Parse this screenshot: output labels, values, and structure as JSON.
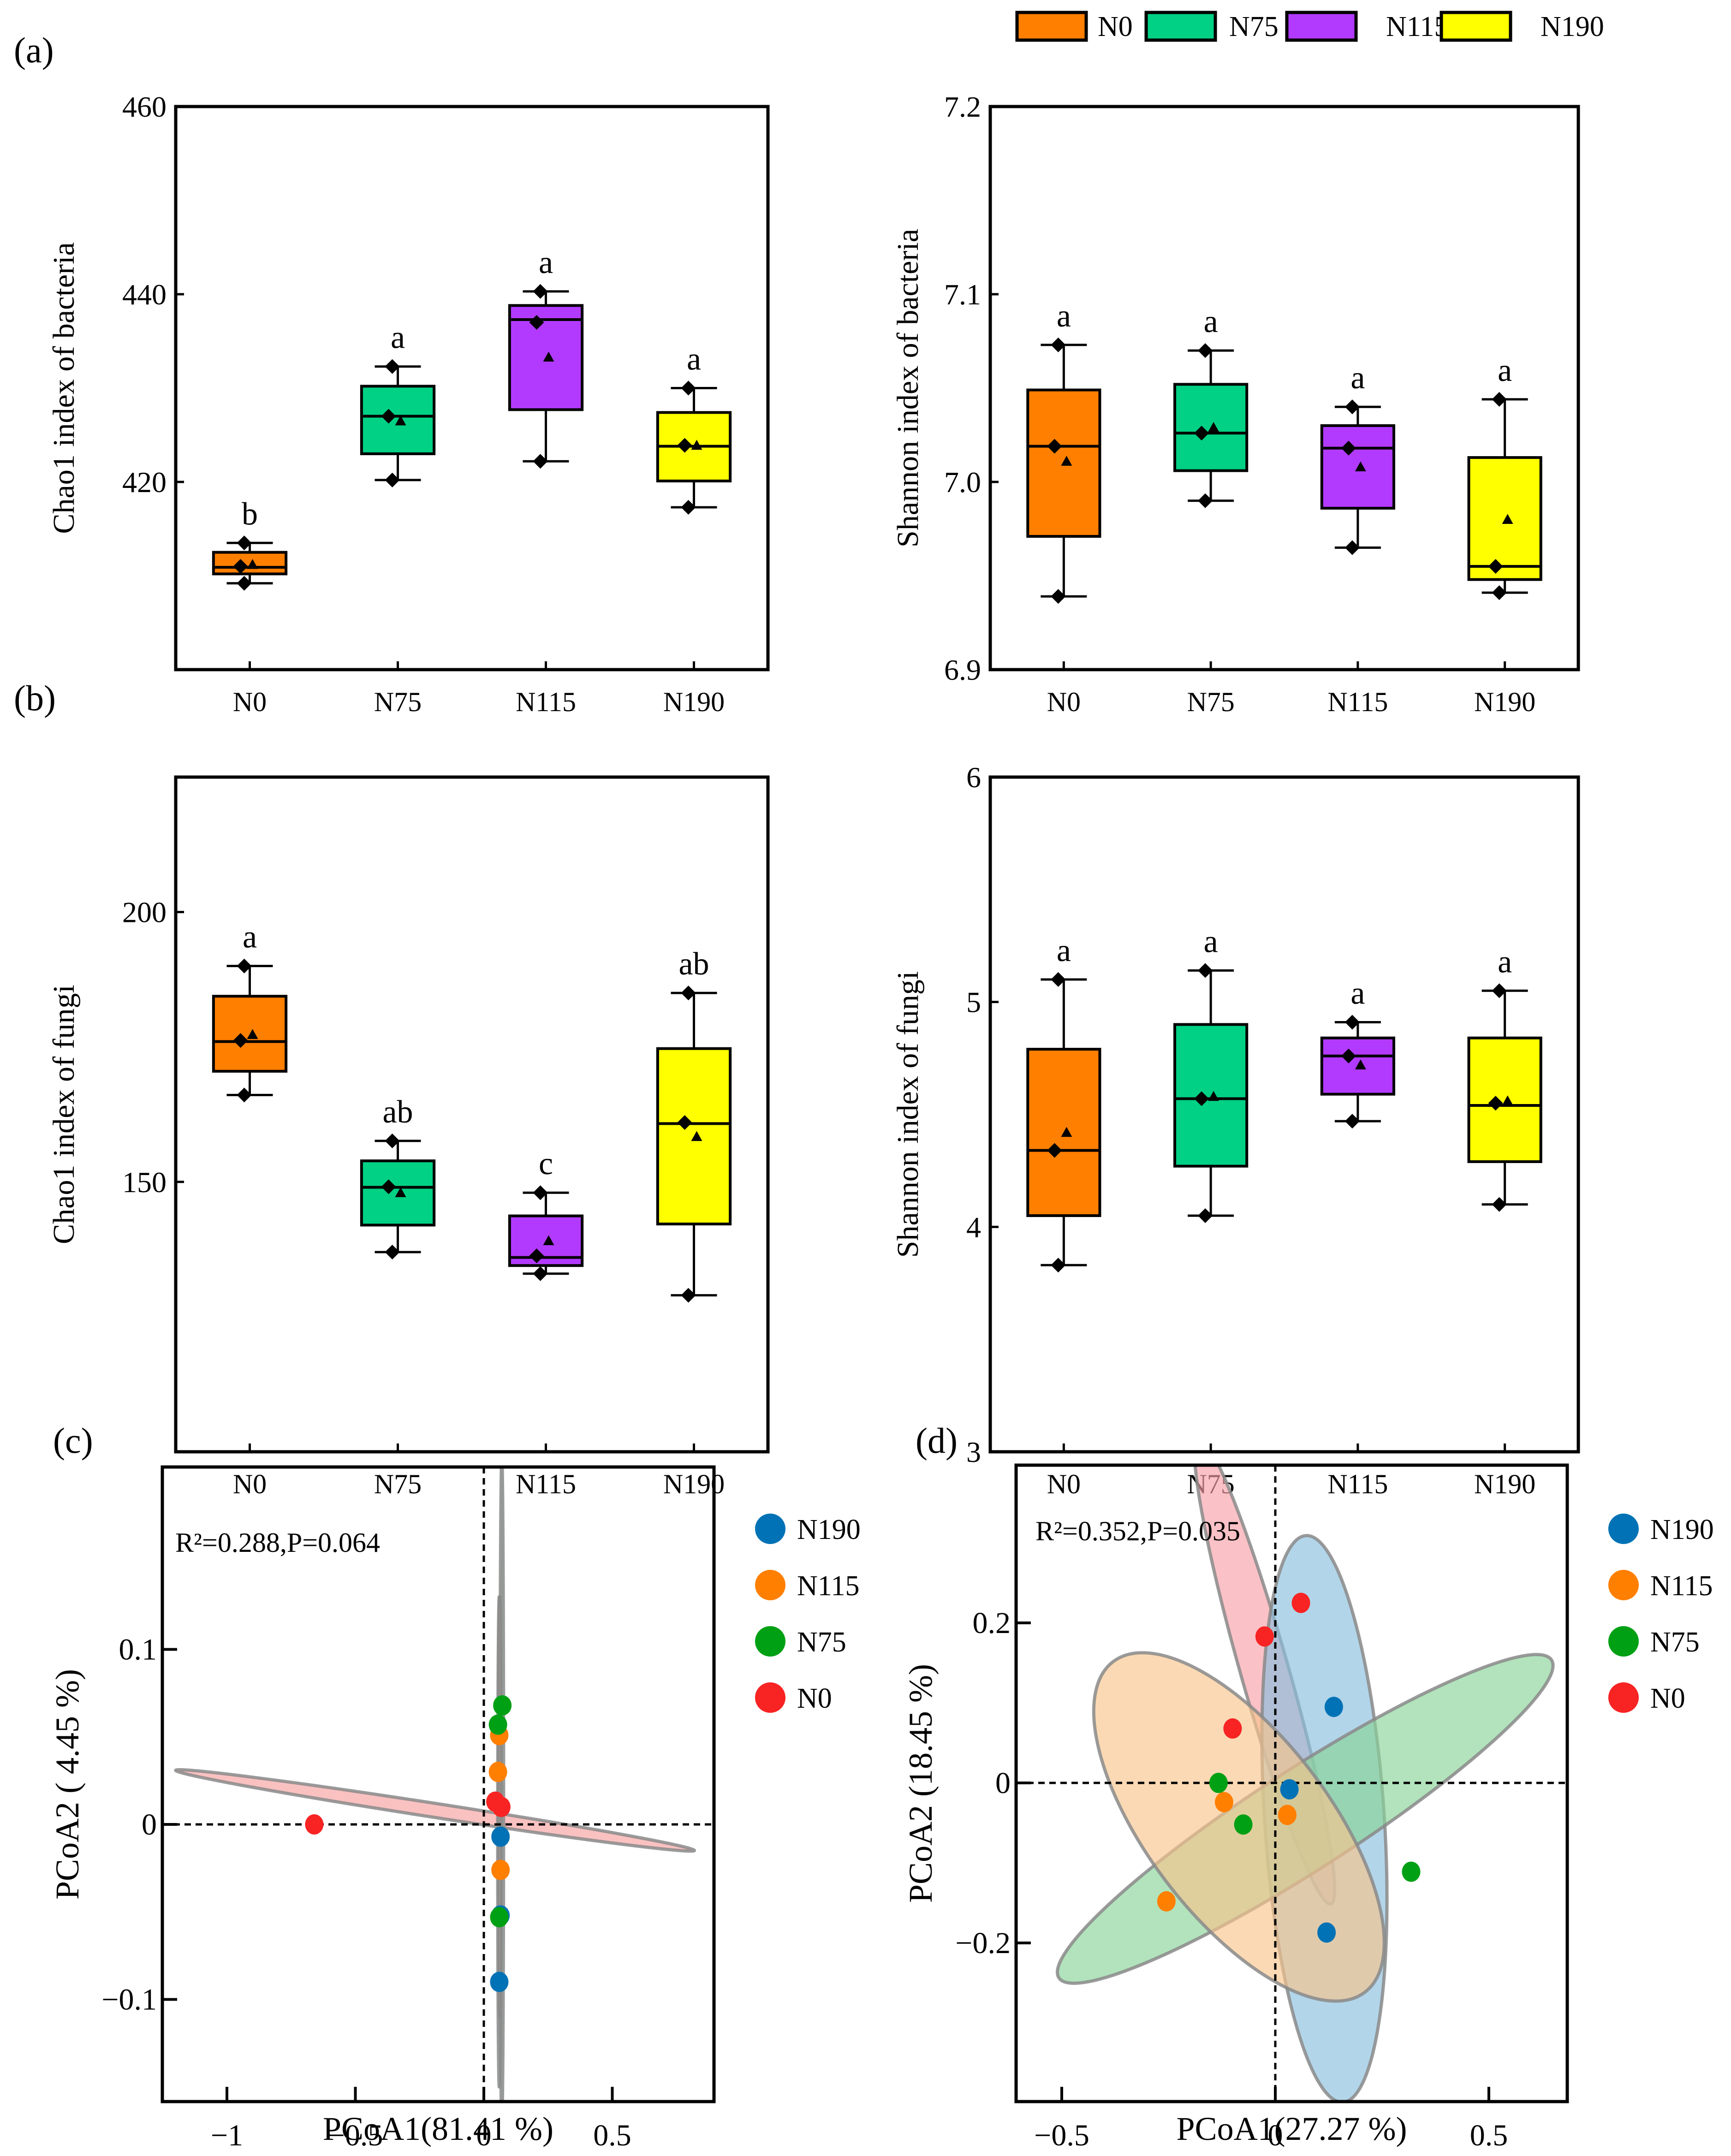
{
  "figure": {
    "panel_labels": [
      "(a)",
      "(b)",
      "(c)",
      "(d)"
    ]
  },
  "legend_box": {
    "items": [
      {
        "label": "N0",
        "color": "#FF7F00"
      },
      {
        "label": "N75",
        "color": "#00D184"
      },
      {
        "label": "N115",
        "color": "#B23AFF"
      },
      {
        "label": "N190",
        "color": "#FFFF00"
      }
    ]
  },
  "chart_data": [
    {
      "id": "chao1-bacteria",
      "type": "box",
      "panel": "(a)",
      "ylabel": "Chao1 index of bacteria",
      "xlabel": "",
      "categories": [
        "N0",
        "N75",
        "N115",
        "N190"
      ],
      "ylim": [
        400,
        460
      ],
      "yticks": [
        420,
        440,
        460
      ],
      "grid": false,
      "boxes": [
        {
          "q1": 410.2,
          "median": 410.9,
          "q3": 412.5,
          "min": 409.2,
          "max": 413.5,
          "mean": 411.2,
          "points": [
            409.2,
            411.0,
            413.5
          ],
          "letter": "b"
        },
        {
          "q1": 423.0,
          "median": 427.0,
          "q3": 430.2,
          "min": 420.2,
          "max": 432.3,
          "mean": 426.5,
          "points": [
            420.2,
            427.0,
            432.3
          ],
          "letter": "a"
        },
        {
          "q1": 427.7,
          "median": 437.3,
          "q3": 438.8,
          "min": 422.2,
          "max": 440.3,
          "mean": 433.3,
          "points": [
            422.2,
            437.0,
            440.3
          ],
          "letter": "a"
        },
        {
          "q1": 420.1,
          "median": 423.8,
          "q3": 427.4,
          "min": 417.3,
          "max": 430.0,
          "mean": 423.9,
          "points": [
            417.3,
            423.9,
            430.0
          ],
          "letter": "a"
        }
      ]
    },
    {
      "id": "shannon-bacteria",
      "type": "box",
      "panel": "(a)",
      "ylabel": "Shannon index of bacteria",
      "xlabel": "",
      "categories": [
        "N0",
        "N75",
        "N115",
        "N190"
      ],
      "ylim": [
        6.9,
        7.2
      ],
      "yticks": [
        6.9,
        7.0,
        7.1,
        7.2
      ],
      "grid": false,
      "boxes": [
        {
          "q1": 6.971,
          "median": 7.019,
          "q3": 7.049,
          "min": 6.939,
          "max": 7.073,
          "mean": 7.011,
          "points": [
            6.939,
            7.019,
            7.073
          ],
          "letter": "a"
        },
        {
          "q1": 7.006,
          "median": 7.026,
          "q3": 7.052,
          "min": 6.99,
          "max": 7.07,
          "mean": 7.029,
          "points": [
            6.99,
            7.026,
            7.07
          ],
          "letter": "a"
        },
        {
          "q1": 6.986,
          "median": 7.018,
          "q3": 7.03,
          "min": 6.965,
          "max": 7.04,
          "mean": 7.008,
          "points": [
            6.965,
            7.018,
            7.04
          ],
          "letter": "a"
        },
        {
          "q1": 6.948,
          "median": 6.955,
          "q3": 7.013,
          "min": 6.941,
          "max": 7.044,
          "mean": 6.98,
          "points": [
            6.941,
            6.955,
            7.044
          ],
          "letter": "a"
        }
      ]
    },
    {
      "id": "chao1-fungi",
      "type": "box",
      "panel": "(b)",
      "ylabel": "Chao1 index of fungi",
      "xlabel": "",
      "categories": [
        "N0",
        "N75",
        "N115",
        "N190"
      ],
      "ylim": [
        100,
        225
      ],
      "yticks": [
        150,
        200
      ],
      "grid": false,
      "boxes": [
        {
          "q1": 170.5,
          "median": 176.0,
          "q3": 184.4,
          "min": 166.1,
          "max": 190.0,
          "mean": 177.3,
          "points": [
            166.1,
            176.2,
            190.0
          ],
          "letter": "a"
        },
        {
          "q1": 142.0,
          "median": 149.0,
          "q3": 153.9,
          "min": 137.0,
          "max": 157.6,
          "mean": 148.0,
          "points": [
            137.0,
            149.1,
            157.6
          ],
          "letter": "ab"
        },
        {
          "q1": 134.5,
          "median": 136.0,
          "q3": 143.7,
          "min": 133.0,
          "max": 148.0,
          "mean": 139.1,
          "points": [
            133.0,
            136.3,
            148.0
          ],
          "letter": "c"
        },
        {
          "q1": 142.2,
          "median": 160.8,
          "q3": 174.7,
          "min": 129.0,
          "max": 185.0,
          "mean": 158.4,
          "points": [
            129.0,
            161.0,
            185.0
          ],
          "letter": "ab"
        }
      ]
    },
    {
      "id": "shannon-fungi",
      "type": "box",
      "panel": "(b)",
      "ylabel": "Shannon  index of fungi",
      "xlabel": "",
      "categories": [
        "N0",
        "N75",
        "N115",
        "N190"
      ],
      "ylim": [
        3,
        6
      ],
      "yticks": [
        3,
        4,
        5,
        6
      ],
      "grid": false,
      "boxes": [
        {
          "q1": 4.05,
          "median": 4.34,
          "q3": 4.79,
          "min": 3.83,
          "max": 5.1,
          "mean": 4.42,
          "points": [
            3.83,
            4.34,
            5.1
          ],
          "letter": "a"
        },
        {
          "q1": 4.27,
          "median": 4.57,
          "q3": 4.9,
          "min": 4.05,
          "max": 5.14,
          "mean": 4.58,
          "points": [
            4.05,
            4.57,
            5.14
          ],
          "letter": "a"
        },
        {
          "q1": 4.59,
          "median": 4.76,
          "q3": 4.84,
          "min": 4.47,
          "max": 4.91,
          "mean": 4.72,
          "points": [
            4.47,
            4.76,
            4.91
          ],
          "letter": "a"
        },
        {
          "q1": 4.29,
          "median": 4.54,
          "q3": 4.84,
          "min": 4.1,
          "max": 5.05,
          "mean": 4.56,
          "points": [
            4.1,
            4.55,
            5.05
          ],
          "letter": "a"
        }
      ]
    },
    {
      "id": "pcoa-bacteria",
      "type": "scatter",
      "panel": "(c)",
      "xlabel": "PCoA1(81.41 %)",
      "ylabel": "PCoA2 ( 4.45 %)",
      "annotation": "R²=0.288,P=0.064",
      "xlim": [
        -1.25,
        0.9
      ],
      "ylim": [
        -0.158,
        0.204
      ],
      "xticks": [
        -1,
        -0.5,
        0,
        0.5
      ],
      "xtick_labels": [
        "−1",
        "−0.5",
        "0",
        "0.5"
      ],
      "yticks": [
        -0.1,
        0,
        0.1
      ],
      "ytick_labels": [
        "−0.1",
        "0",
        "0.1"
      ],
      "legend_position": "right",
      "series": [
        {
          "name": "N190",
          "color": "#0072B5",
          "points": [
            [
              0.065,
              -0.007
            ],
            [
              0.065,
              -0.052
            ],
            [
              0.06,
              -0.09
            ]
          ]
        },
        {
          "name": "N115",
          "color": "#FF7F00",
          "points": [
            [
              0.06,
              0.051
            ],
            [
              0.055,
              0.03
            ],
            [
              0.065,
              -0.026
            ]
          ]
        },
        {
          "name": "N75",
          "color": "#00A014",
          "points": [
            [
              0.072,
              0.068
            ],
            [
              0.055,
              0.057
            ],
            [
              0.06,
              -0.053
            ]
          ]
        },
        {
          "name": "N0",
          "color": "#F82323",
          "points": [
            [
              -0.66,
              0.0
            ],
            [
              0.045,
              0.013
            ],
            [
              0.068,
              0.01
            ]
          ]
        }
      ],
      "ellipses": [
        {
          "group": "N0",
          "fill": "#F8A0A0",
          "center": [
            -0.19,
            0.008
          ],
          "rx": 1.01,
          "ry": 0.004,
          "angle_deg": -1.3
        },
        {
          "group": "N75",
          "fill": "#A8E6B8",
          "center": [
            0.07,
            0.02
          ],
          "rx": 0.007,
          "ry": 0.19,
          "angle_deg": 0
        },
        {
          "group": "N190",
          "fill": "#A0C8E0",
          "center": [
            0.06,
            -0.01
          ],
          "rx": 0.006,
          "ry": 0.14,
          "angle_deg": 0
        },
        {
          "group": "N115",
          "fill": "#F4C89A",
          "center": [
            0.062,
            0.01
          ],
          "rx": 0.004,
          "ry": 0.12,
          "angle_deg": 0
        }
      ]
    },
    {
      "id": "pcoa-fungi",
      "type": "scatter",
      "panel": "(d)",
      "xlabel": "PCoA1(27.27 %)",
      "ylabel": "PCoA2 (18.45 %)",
      "annotation": "R²=0.352,P=0.035",
      "xlim": [
        -0.61,
        0.68
      ],
      "ylim": [
        -0.4,
        0.38
      ],
      "xticks": [
        -0.5,
        0,
        0.5
      ],
      "xtick_labels": [
        "−0.5",
        "0",
        "0.5"
      ],
      "yticks": [
        -0.2,
        0,
        0.2
      ],
      "ytick_labels": [
        "−0.2",
        "0",
        "0.2"
      ],
      "legend_position": "right",
      "series": [
        {
          "name": "N190",
          "color": "#0072B5",
          "points": [
            [
              0.137,
              0.095
            ],
            [
              0.033,
              -0.008
            ],
            [
              0.12,
              -0.187
            ]
          ]
        },
        {
          "name": "N115",
          "color": "#FF7F00",
          "points": [
            [
              -0.12,
              -0.024
            ],
            [
              0.028,
              -0.04
            ],
            [
              -0.255,
              -0.148
            ]
          ]
        },
        {
          "name": "N75",
          "color": "#00A014",
          "points": [
            [
              -0.133,
              0.0
            ],
            [
              -0.075,
              -0.052
            ],
            [
              0.318,
              -0.111
            ]
          ]
        },
        {
          "name": "N0",
          "color": "#F82323",
          "points": [
            [
              0.06,
              0.225
            ],
            [
              -0.025,
              0.183
            ],
            [
              -0.1,
              0.068
            ]
          ]
        }
      ],
      "ellipses": [
        {
          "group": "N0",
          "fill": "#F8A0A8",
          "center": [
            -0.025,
            0.14
          ],
          "rx": 0.33,
          "ry": 0.045,
          "angle_deg": -62
        },
        {
          "group": "N190",
          "fill": "#88BEDD",
          "center": [
            0.115,
            -0.045
          ],
          "rx": 0.14,
          "ry": 0.355,
          "angle_deg": 2
        },
        {
          "group": "N75",
          "fill": "#88D498",
          "center": [
            0.07,
            -0.045
          ],
          "rx": 0.61,
          "ry": 0.065,
          "angle_deg": 19
        },
        {
          "group": "N115",
          "fill": "#F8C48C",
          "center": [
            -0.085,
            -0.055
          ],
          "rx": 0.36,
          "ry": 0.13,
          "angle_deg": -35
        }
      ]
    }
  ]
}
